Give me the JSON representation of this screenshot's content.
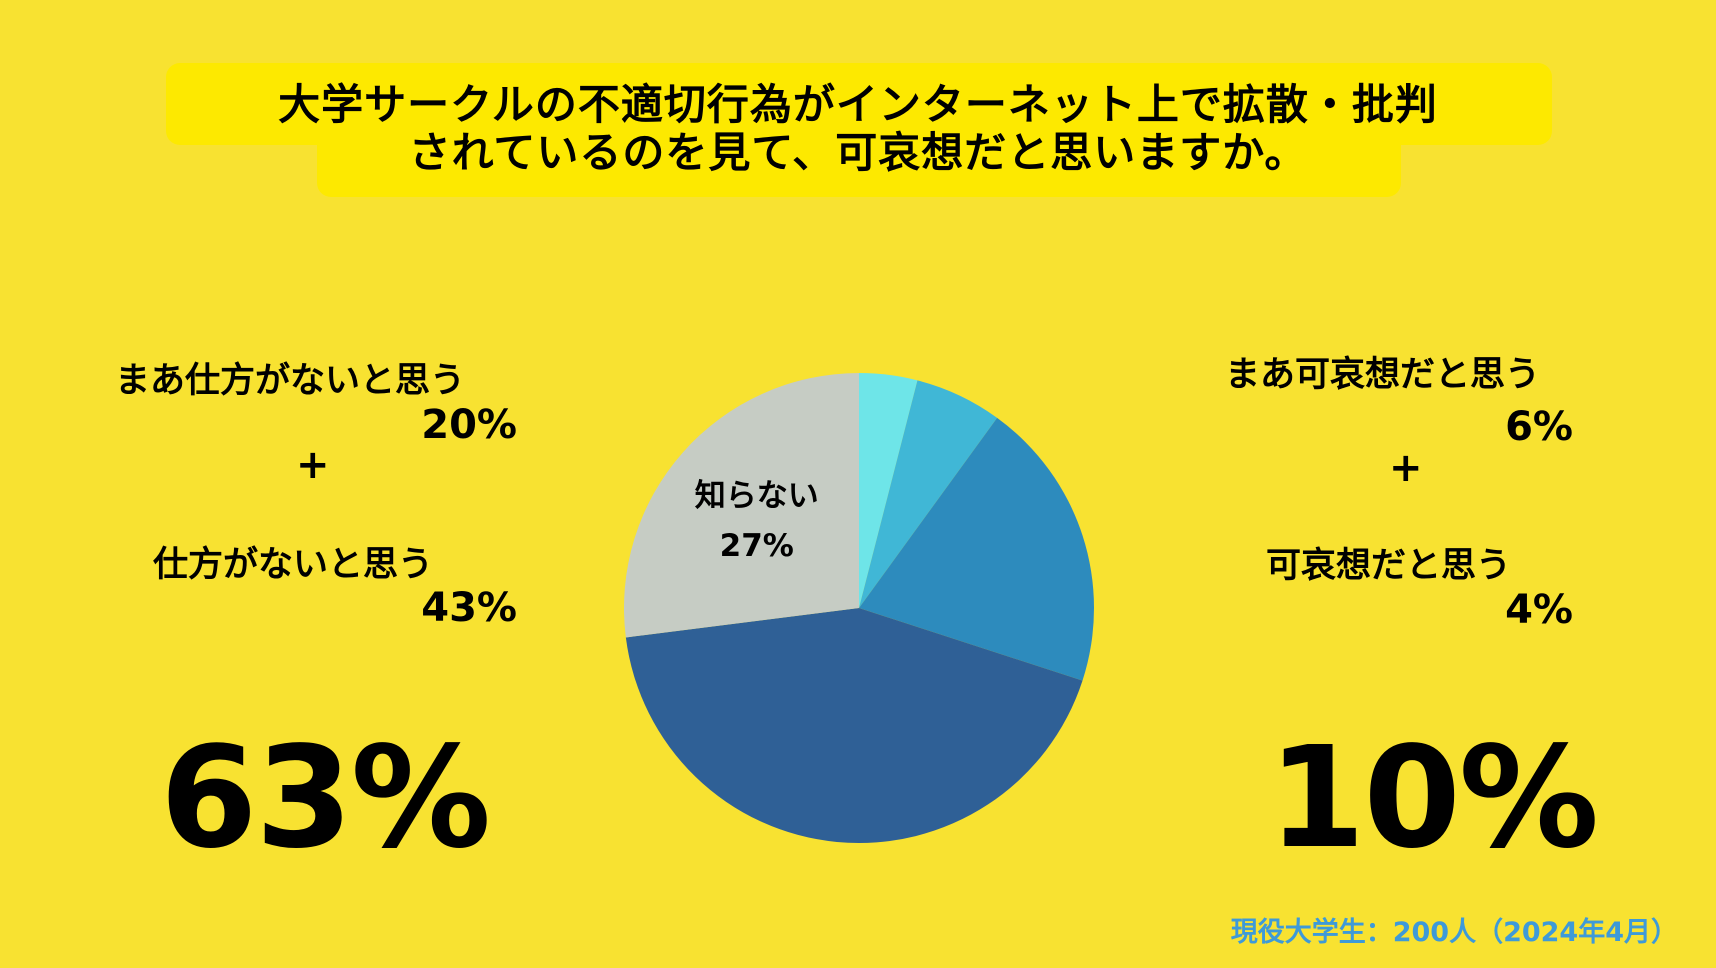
{
  "title": {
    "line1": "大学サークルの不適切行為がインターネット上で拡散・批判",
    "line2": "されているのを見て、可哀想だと思いますか。"
  },
  "left": {
    "item1_label": "まあ仕方がないと思う",
    "item1_value": "20%",
    "plus": "+",
    "item2_label": "仕方がないと思う",
    "item2_value": "43%",
    "total": "63%"
  },
  "right": {
    "item1_label": "まあ可哀想だと思う",
    "item1_value": "6%",
    "plus": "+",
    "item2_label": "可哀想だと思う",
    "item2_value": "4%",
    "total": "10%"
  },
  "footnote": "現役大学生：200人（2024年4月）",
  "chart_data": {
    "type": "pie",
    "title": "大学サークルの不適切行為がインターネット上で拡散・批判されているのを見て、可哀想だと思いますか。",
    "start": "12 o'clock, clockwise",
    "slices": [
      {
        "name": "可哀想だと思う",
        "value": 4,
        "color": "#6ee5e8"
      },
      {
        "name": "まあ可哀想だと思う",
        "value": 6,
        "color": "#40b7d6"
      },
      {
        "name": "まあ仕方がないと思う",
        "value": 20,
        "color": "#2d8bbd"
      },
      {
        "name": "仕方がないと思う",
        "value": 43,
        "color": "#2f6096"
      },
      {
        "name": "知らない",
        "value": 27,
        "color": "#c6ccc4",
        "label": "知らない",
        "value_label": "27%"
      }
    ]
  }
}
